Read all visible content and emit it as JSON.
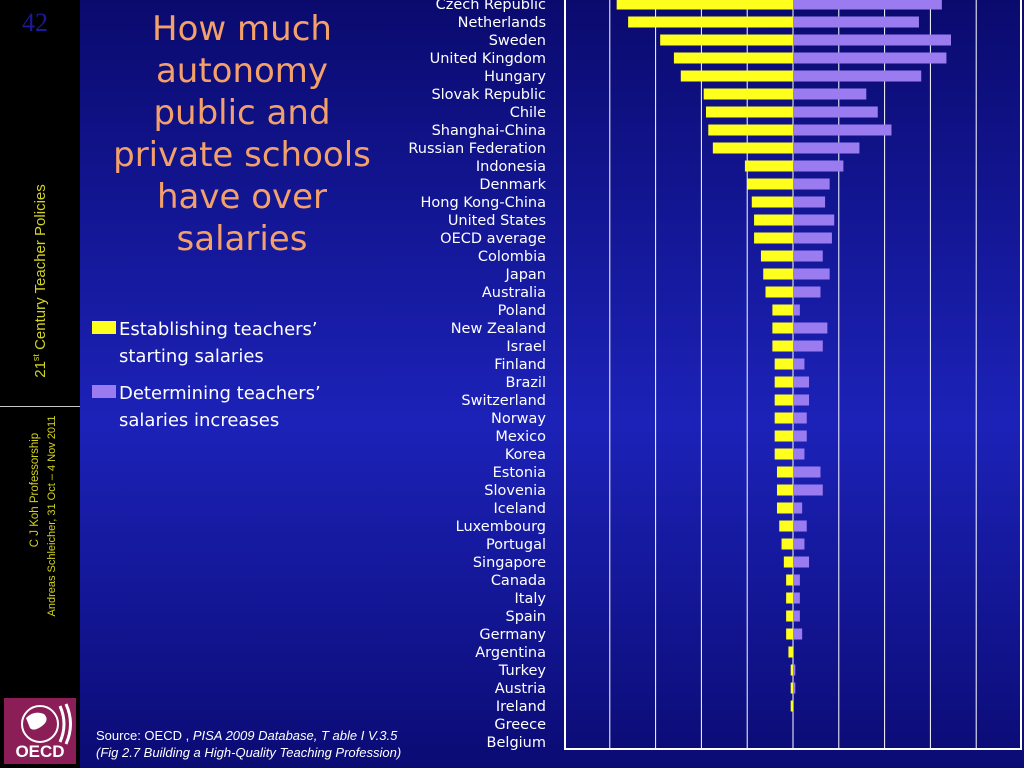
{
  "slide": {
    "number": "42",
    "title": "How much autonomy public and private schools have over salaries",
    "sidebar_course_prefix": "21",
    "sidebar_course_sup": "st",
    "sidebar_course_suffix": " Century Teacher Policies",
    "sidebar_author1": "C J Koh Professorship",
    "sidebar_author2": "Andreas Schleicher, 31 Oct – 4 Nov 2011",
    "logo_text": "OECD",
    "source_prefix": "Source: OECD ,",
    "source_italic": "PISA 2009 Database, T able I V.3.5",
    "source_line2": "(Fig 2.7 Building a High-Quality Teaching Profession)"
  },
  "colors": {
    "starting": "#ffff1e",
    "increases": "#9b7cf0",
    "sidebar": "#000000",
    "title": "#f4a06a"
  },
  "chart_data": {
    "type": "bar",
    "orientation": "horizontal-diverging",
    "categories": [
      "Czech Republic",
      "Netherlands",
      "Sweden",
      "United Kingdom",
      "Hungary",
      "Slovak Republic",
      "Chile",
      "Shanghai-China",
      "Russian Federation",
      "Indonesia",
      "Denmark",
      "Hong Kong-China",
      "United States",
      "OECD average",
      "Colombia",
      "Japan",
      "Australia",
      "Poland",
      "New Zealand",
      "Israel",
      "Finland",
      "Brazil",
      "Switzerland",
      "Norway",
      "Mexico",
      "Korea",
      "Estonia",
      "Slovenia",
      "Iceland",
      "Luxembourg",
      "Portugal",
      "Singapore",
      "Canada",
      "Italy",
      "Spain",
      "Germany",
      "Argentina",
      "Turkey",
      "Austria",
      "Ireland",
      "Greece",
      "Belgium"
    ],
    "series": [
      {
        "name": "Establishing teachers’ starting salaries",
        "values": [
          77,
          72,
          58,
          52,
          49,
          39,
          38,
          37,
          35,
          21,
          20,
          18,
          17,
          17,
          14,
          13,
          12,
          9,
          9,
          9,
          8,
          8,
          8,
          8,
          8,
          8,
          7,
          7,
          7,
          6,
          5,
          4,
          3,
          3,
          3,
          3,
          2,
          1,
          1,
          1,
          0,
          0
        ]
      },
      {
        "name": "Determining teachers’ salaries increases",
        "values": [
          65,
          55,
          69,
          67,
          56,
          32,
          37,
          43,
          29,
          22,
          16,
          14,
          18,
          17,
          13,
          16,
          12,
          3,
          15,
          13,
          5,
          7,
          7,
          6,
          6,
          5,
          12,
          13,
          4,
          6,
          5,
          7,
          3,
          3,
          3,
          4,
          0,
          1,
          1,
          0,
          0,
          0
        ]
      }
    ],
    "xlim": [
      -100,
      100
    ],
    "grid_x": [
      -80,
      -60,
      -40,
      -20,
      0,
      20,
      40,
      60,
      80
    ],
    "legend_placement": "left",
    "grid": true
  }
}
